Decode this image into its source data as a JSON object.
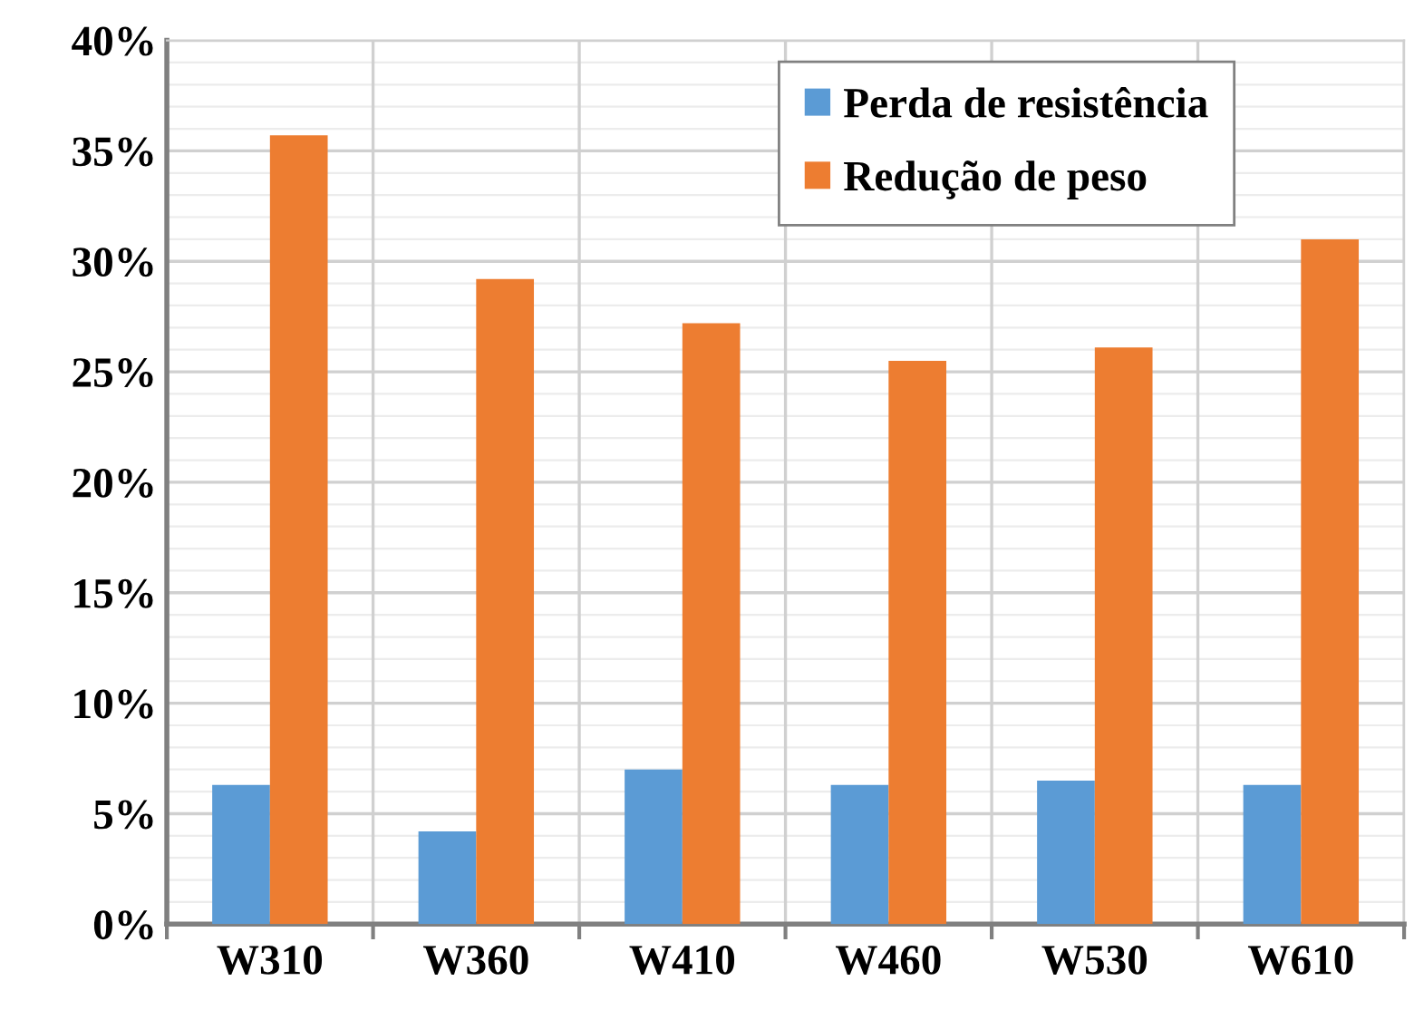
{
  "chart_data": {
    "type": "bar",
    "categories": [
      "W310",
      "W360",
      "W410",
      "W460",
      "W530",
      "W610"
    ],
    "series": [
      {
        "name": "Perda de resistência",
        "color": "#5b9bd5",
        "values": [
          6.3,
          4.2,
          7.0,
          6.3,
          6.5,
          6.3
        ]
      },
      {
        "name": "Redução de peso",
        "color": "#ed7d31",
        "values": [
          35.7,
          29.2,
          27.2,
          25.5,
          26.1,
          31.0
        ]
      }
    ],
    "ylim": [
      0,
      40
    ],
    "yticks": [
      {
        "value": 0,
        "label": "0%"
      },
      {
        "value": 5,
        "label": "5%"
      },
      {
        "value": 10,
        "label": "10%"
      },
      {
        "value": 15,
        "label": "15%"
      },
      {
        "value": 20,
        "label": "20%"
      },
      {
        "value": 25,
        "label": "25%"
      },
      {
        "value": 30,
        "label": "30%"
      },
      {
        "value": 35,
        "label": "35%"
      },
      {
        "value": 40,
        "label": "40%"
      }
    ],
    "grid": true,
    "legend": "top right"
  }
}
